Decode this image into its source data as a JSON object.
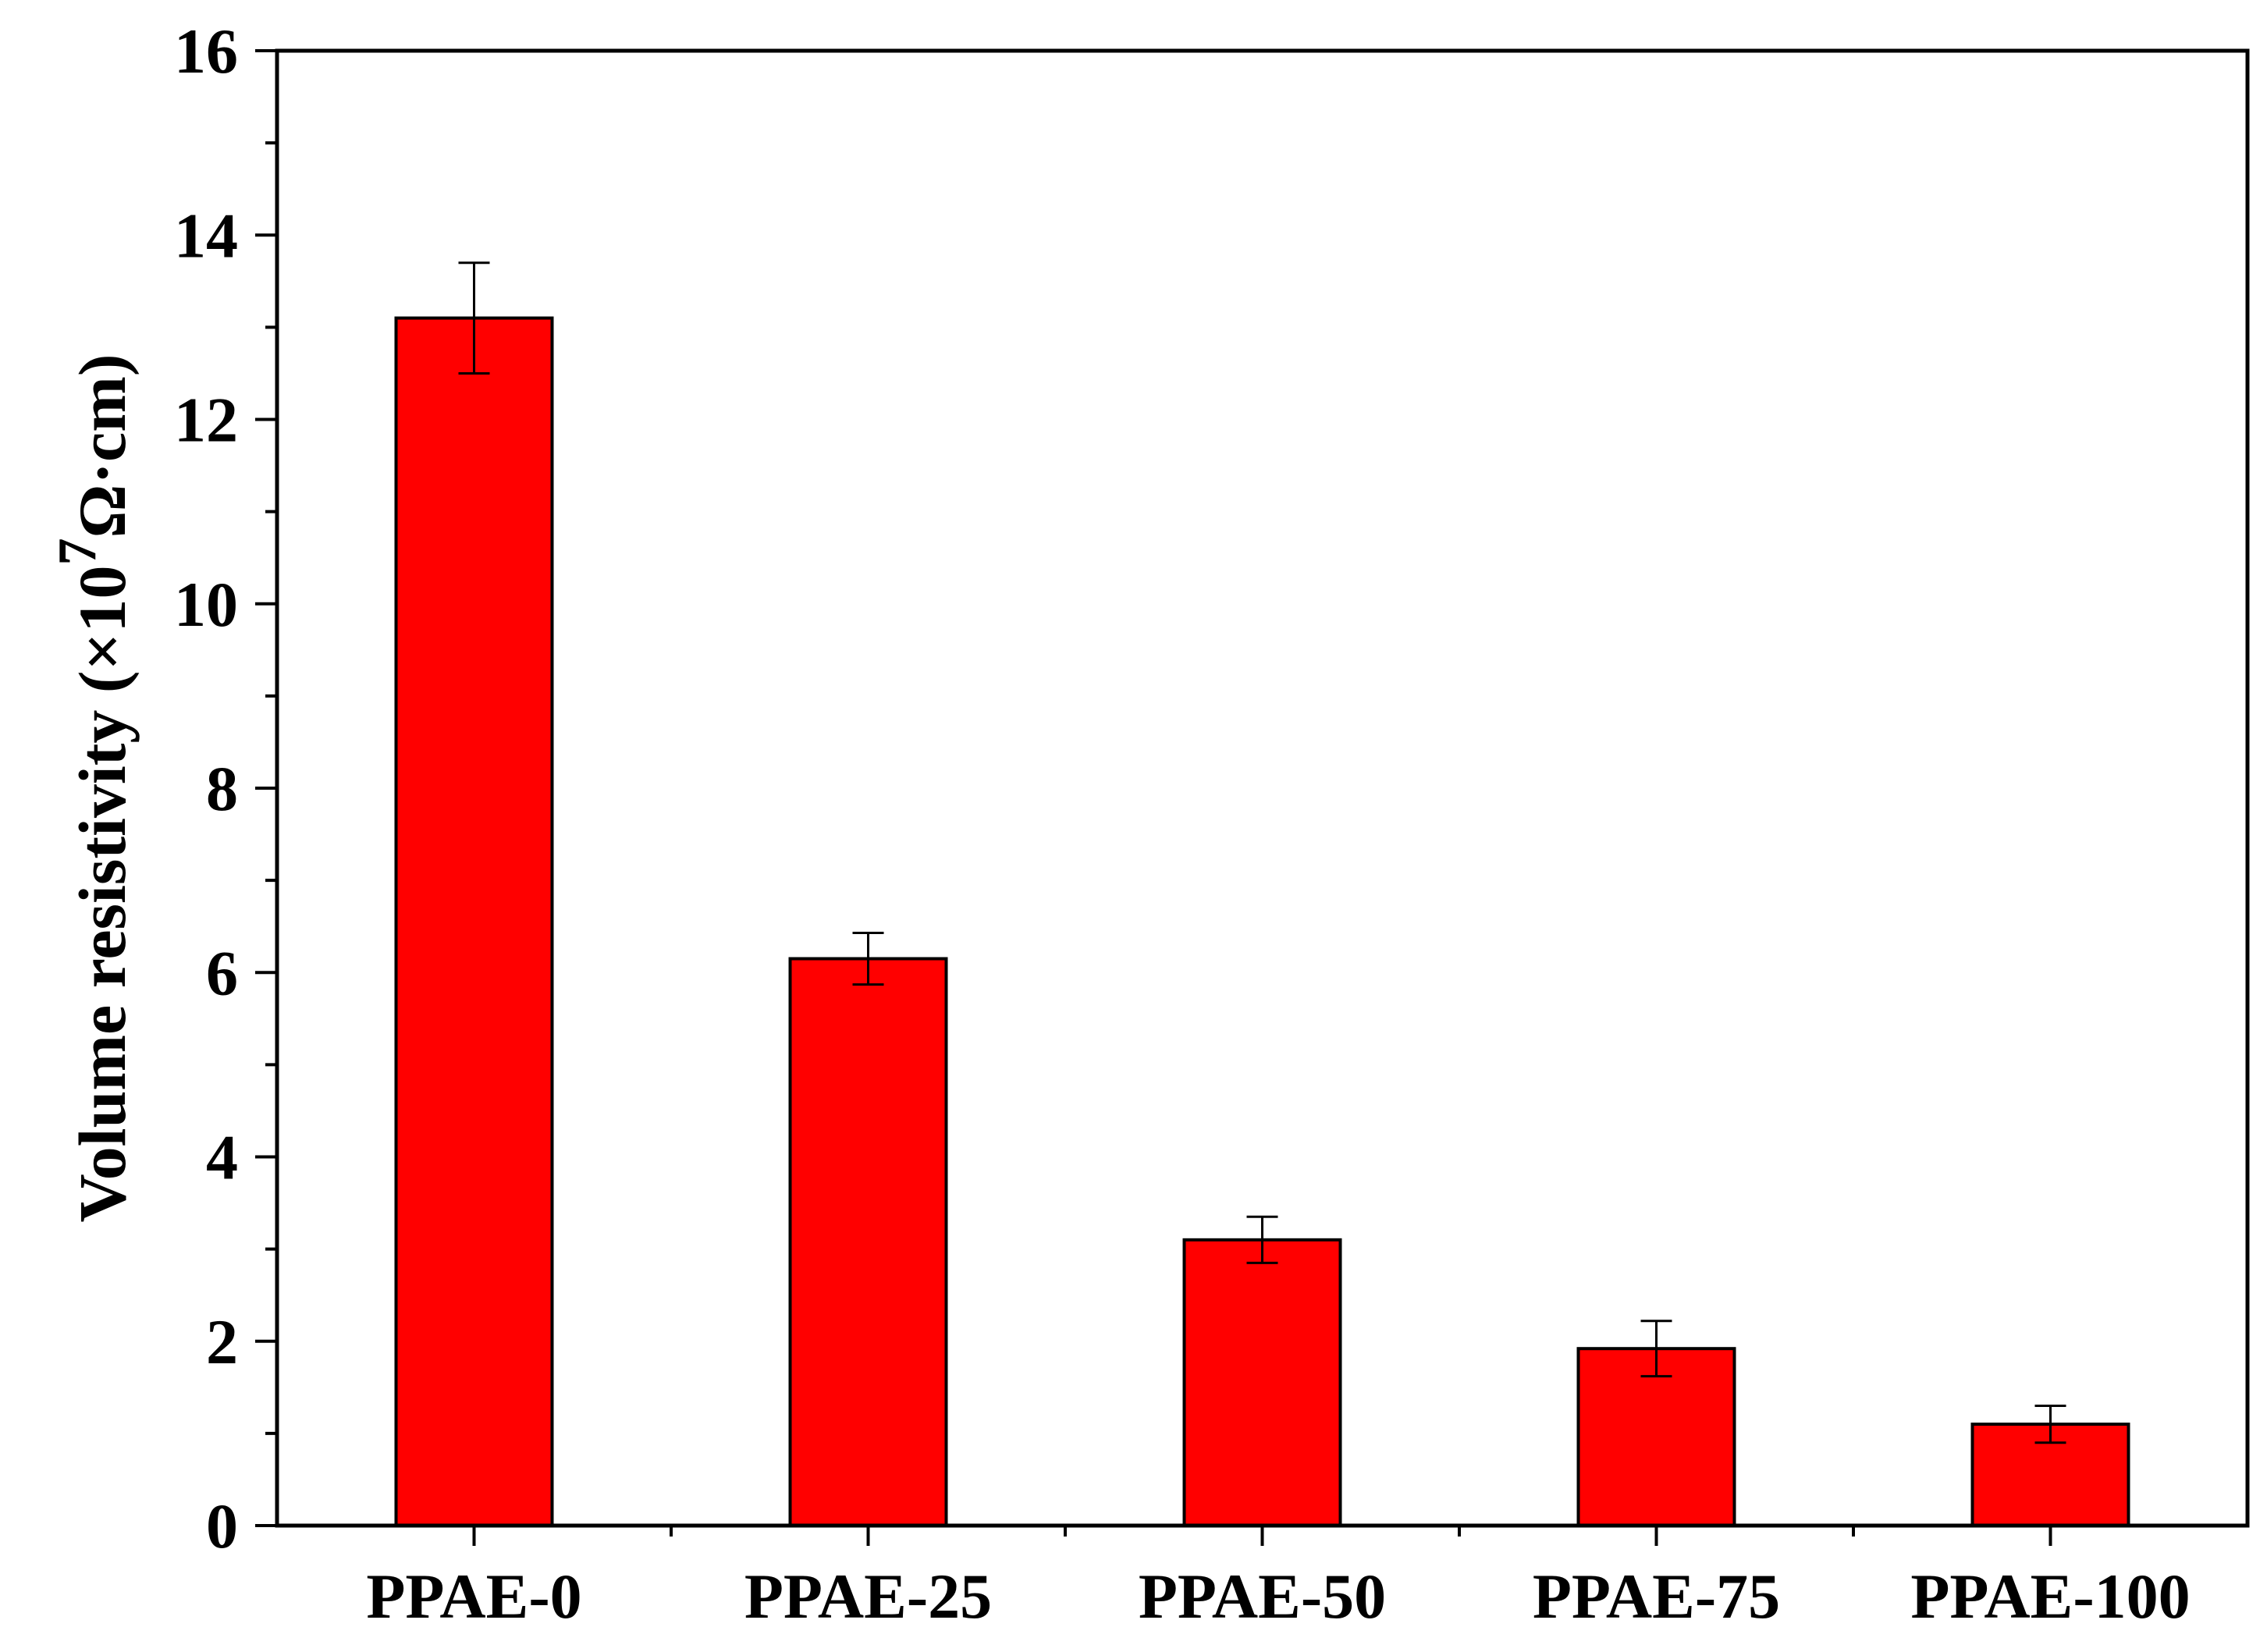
{
  "chart_data": {
    "type": "bar",
    "categories": [
      "PPAE-0",
      "PPAE-25",
      "PPAE-50",
      "PPAE-75",
      "PPAE-100"
    ],
    "values": [
      13.1,
      6.15,
      3.1,
      1.92,
      1.1
    ],
    "errors": [
      0.6,
      0.28,
      0.25,
      0.3,
      0.2
    ],
    "title": "",
    "xlabel": "",
    "ylabel": {
      "main": "Volume resistivity (×10",
      "exponent": "7",
      "unit": "Ω·cm)"
    },
    "ylim": [
      0,
      16
    ],
    "yticks": [
      "0",
      "2",
      "4",
      "6",
      "8",
      "10",
      "12",
      "14",
      "16"
    ],
    "ytick_values": [
      0,
      2,
      4,
      6,
      8,
      10,
      12,
      14,
      16
    ],
    "bar_color": "#ff0000",
    "edge_color": "#000000",
    "grid": false,
    "legend": "none"
  }
}
